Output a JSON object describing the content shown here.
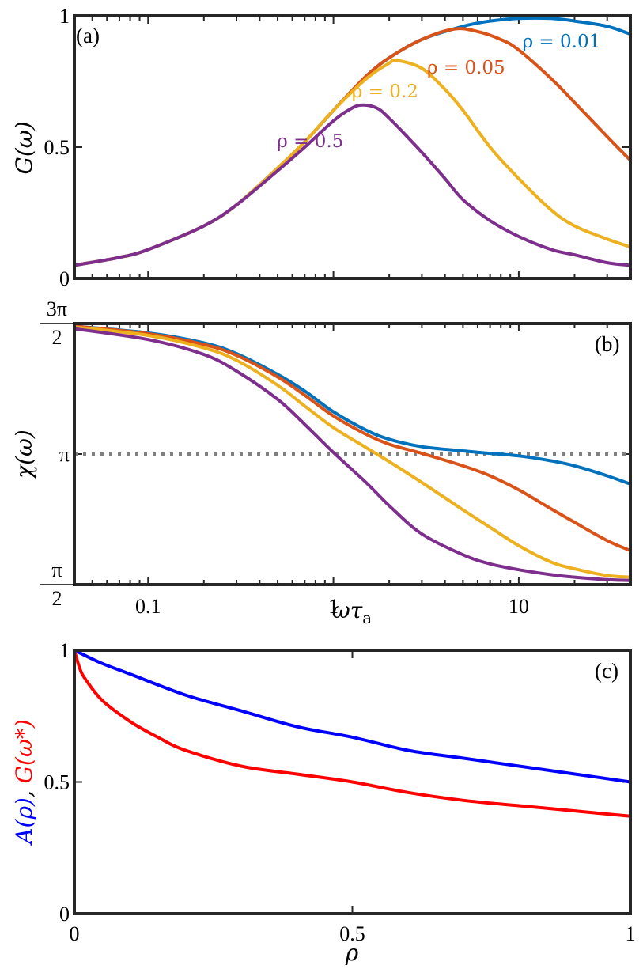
{
  "chart_data": [
    {
      "panel": "(a)",
      "type": "line",
      "xscale": "log",
      "xlim": [
        0.04,
        40
      ],
      "ylim": [
        0,
        1
      ],
      "ylabel": "G(ω)",
      "yticks": [
        {
          "v": 0,
          "label": "0"
        },
        {
          "v": 0.5,
          "label": "0.5"
        },
        {
          "v": 1,
          "label": "1"
        }
      ],
      "colors": {
        "rho_0.01": "#0072BD",
        "rho_0.05": "#D95319",
        "rho_0.2": "#EDB120",
        "rho_0.5": "#7E2F8E"
      },
      "series": [
        {
          "name": "ρ = 0.01",
          "color": "#0072BD",
          "x": [
            0.04,
            0.07,
            0.1,
            0.2,
            0.3,
            0.5,
            0.7,
            1,
            1.5,
            2,
            3,
            5,
            7,
            10,
            15,
            20,
            30,
            40
          ],
          "y": [
            0.05,
            0.08,
            0.11,
            0.2,
            0.28,
            0.42,
            0.52,
            0.64,
            0.77,
            0.84,
            0.91,
            0.96,
            0.98,
            0.99,
            0.99,
            0.98,
            0.96,
            0.93
          ]
        },
        {
          "name": "ρ = 0.05",
          "color": "#D95319",
          "x": [
            0.04,
            0.07,
            0.1,
            0.2,
            0.3,
            0.5,
            0.7,
            1,
            1.5,
            2,
            3,
            4.5,
            6,
            8,
            10,
            15,
            20,
            30,
            40
          ],
          "y": [
            0.05,
            0.08,
            0.11,
            0.2,
            0.28,
            0.42,
            0.52,
            0.64,
            0.77,
            0.84,
            0.91,
            0.95,
            0.94,
            0.91,
            0.87,
            0.76,
            0.67,
            0.54,
            0.45
          ]
        },
        {
          "name": "ρ = 0.2",
          "color": "#EDB120",
          "x": [
            0.04,
            0.07,
            0.1,
            0.2,
            0.3,
            0.5,
            0.7,
            1,
            1.5,
            2,
            2.2,
            3,
            4,
            5,
            7,
            10,
            15,
            20,
            30,
            40
          ],
          "y": [
            0.05,
            0.08,
            0.11,
            0.2,
            0.28,
            0.42,
            0.52,
            0.64,
            0.76,
            0.82,
            0.83,
            0.8,
            0.72,
            0.64,
            0.5,
            0.38,
            0.26,
            0.2,
            0.15,
            0.12
          ]
        },
        {
          "name": "ρ = 0.5",
          "color": "#7E2F8E",
          "x": [
            0.04,
            0.07,
            0.1,
            0.2,
            0.3,
            0.5,
            0.7,
            1,
            1.2,
            1.4,
            1.7,
            2,
            3,
            4,
            5,
            7,
            10,
            15,
            20,
            30,
            40
          ],
          "y": [
            0.05,
            0.08,
            0.11,
            0.2,
            0.28,
            0.41,
            0.5,
            0.6,
            0.64,
            0.66,
            0.65,
            0.61,
            0.48,
            0.38,
            0.3,
            0.22,
            0.16,
            0.11,
            0.09,
            0.06,
            0.05
          ]
        }
      ],
      "annotations": [
        {
          "text": "ρ = 0.01",
          "color": "#0072BD",
          "x": 17,
          "y": 0.88
        },
        {
          "text": "ρ = 0.05",
          "color": "#D95319",
          "x": 5.2,
          "y": 0.78
        },
        {
          "text": "ρ = 0.2",
          "color": "#EDB120",
          "x": 1.9,
          "y": 0.69
        },
        {
          "text": "ρ = 0.5",
          "color": "#7E2F8E",
          "x": 0.75,
          "y": 0.5
        }
      ]
    },
    {
      "panel": "(b)",
      "type": "line",
      "xscale": "log",
      "xlim": [
        0.04,
        40
      ],
      "ylim": [
        1.5708,
        4.7124
      ],
      "ylabel": "χ(ω)",
      "xlabel": "ωτ",
      "xlabel_sub": "a",
      "xticks": [
        {
          "v": 0.1,
          "label": "0.1"
        },
        {
          "v": 1,
          "label": "1"
        },
        {
          "v": 10,
          "label": "10"
        }
      ],
      "yticks": [
        {
          "v": 1.5708,
          "label_num": "π",
          "label_den": "2"
        },
        {
          "v": 3.1416,
          "label": "π"
        },
        {
          "v": 4.7124,
          "label_num": "3π",
          "label_den": "2"
        }
      ],
      "reference_line": {
        "y": 3.1416,
        "style": "dotted",
        "color": "#808080"
      },
      "series": [
        {
          "name": "ρ = 0.01",
          "color": "#0072BD",
          "x": [
            0.04,
            0.1,
            0.2,
            0.3,
            0.5,
            0.7,
            1,
            1.5,
            2,
            3,
            5,
            7,
            10,
            15,
            20,
            30,
            40
          ],
          "y": [
            4.68,
            4.6,
            4.48,
            4.35,
            4.1,
            3.9,
            3.65,
            3.43,
            3.32,
            3.23,
            3.18,
            3.15,
            3.12,
            3.06,
            3.0,
            2.88,
            2.78
          ]
        },
        {
          "name": "ρ = 0.05",
          "color": "#D95319",
          "x": [
            0.04,
            0.1,
            0.2,
            0.3,
            0.5,
            0.7,
            1,
            1.5,
            2,
            3,
            5,
            7,
            10,
            15,
            20,
            30,
            40
          ],
          "y": [
            4.68,
            4.59,
            4.46,
            4.33,
            4.07,
            3.85,
            3.6,
            3.38,
            3.26,
            3.15,
            3.0,
            2.88,
            2.71,
            2.48,
            2.32,
            2.1,
            1.98
          ]
        },
        {
          "name": "ρ = 0.2",
          "color": "#EDB120",
          "x": [
            0.04,
            0.1,
            0.2,
            0.3,
            0.5,
            0.7,
            1,
            1.5,
            2,
            3,
            5,
            7,
            10,
            15,
            20,
            30,
            40
          ],
          "y": [
            4.67,
            4.57,
            4.42,
            4.27,
            3.97,
            3.72,
            3.46,
            3.22,
            3.05,
            2.8,
            2.47,
            2.26,
            2.04,
            1.84,
            1.76,
            1.68,
            1.66
          ]
        },
        {
          "name": "ρ = 0.5",
          "color": "#7E2F8E",
          "x": [
            0.04,
            0.1,
            0.2,
            0.3,
            0.5,
            0.7,
            1,
            1.5,
            2,
            3,
            5,
            7,
            10,
            15,
            20,
            30,
            40
          ],
          "y": [
            4.65,
            4.52,
            4.34,
            4.14,
            3.8,
            3.5,
            3.16,
            2.8,
            2.52,
            2.18,
            1.93,
            1.82,
            1.75,
            1.69,
            1.66,
            1.63,
            1.62
          ]
        }
      ]
    },
    {
      "panel": "(c)",
      "type": "line",
      "xscale": "linear",
      "xlim": [
        0,
        1
      ],
      "ylim": [
        0,
        1
      ],
      "xlabel": "ρ",
      "ylabel_parts": [
        {
          "text": "A(ρ)",
          "color": "#0000FF"
        },
        {
          "text": ", ",
          "color": "#000000"
        },
        {
          "text": "G(ω*)",
          "color": "#FF0000"
        }
      ],
      "xticks": [
        {
          "v": 0,
          "label": "0"
        },
        {
          "v": 0.5,
          "label": "0.5"
        },
        {
          "v": 1,
          "label": "1"
        }
      ],
      "yticks": [
        {
          "v": 0,
          "label": "0"
        },
        {
          "v": 0.5,
          "label": "0.5"
        },
        {
          "v": 1,
          "label": "1"
        }
      ],
      "series": [
        {
          "name": "A(ρ)",
          "color": "#0000FF",
          "x": [
            0,
            0.05,
            0.1,
            0.2,
            0.3,
            0.4,
            0.5,
            0.6,
            0.7,
            0.8,
            0.9,
            1
          ],
          "y": [
            1.0,
            0.95,
            0.91,
            0.83,
            0.77,
            0.71,
            0.67,
            0.62,
            0.59,
            0.56,
            0.53,
            0.5
          ]
        },
        {
          "name": "G(ω*)",
          "color": "#FF0000",
          "x": [
            0,
            0.01,
            0.02,
            0.05,
            0.1,
            0.15,
            0.2,
            0.3,
            0.4,
            0.5,
            0.6,
            0.7,
            0.8,
            0.9,
            1
          ],
          "y": [
            1.0,
            0.93,
            0.89,
            0.81,
            0.73,
            0.67,
            0.62,
            0.56,
            0.53,
            0.5,
            0.46,
            0.43,
            0.41,
            0.39,
            0.37
          ]
        }
      ]
    }
  ]
}
